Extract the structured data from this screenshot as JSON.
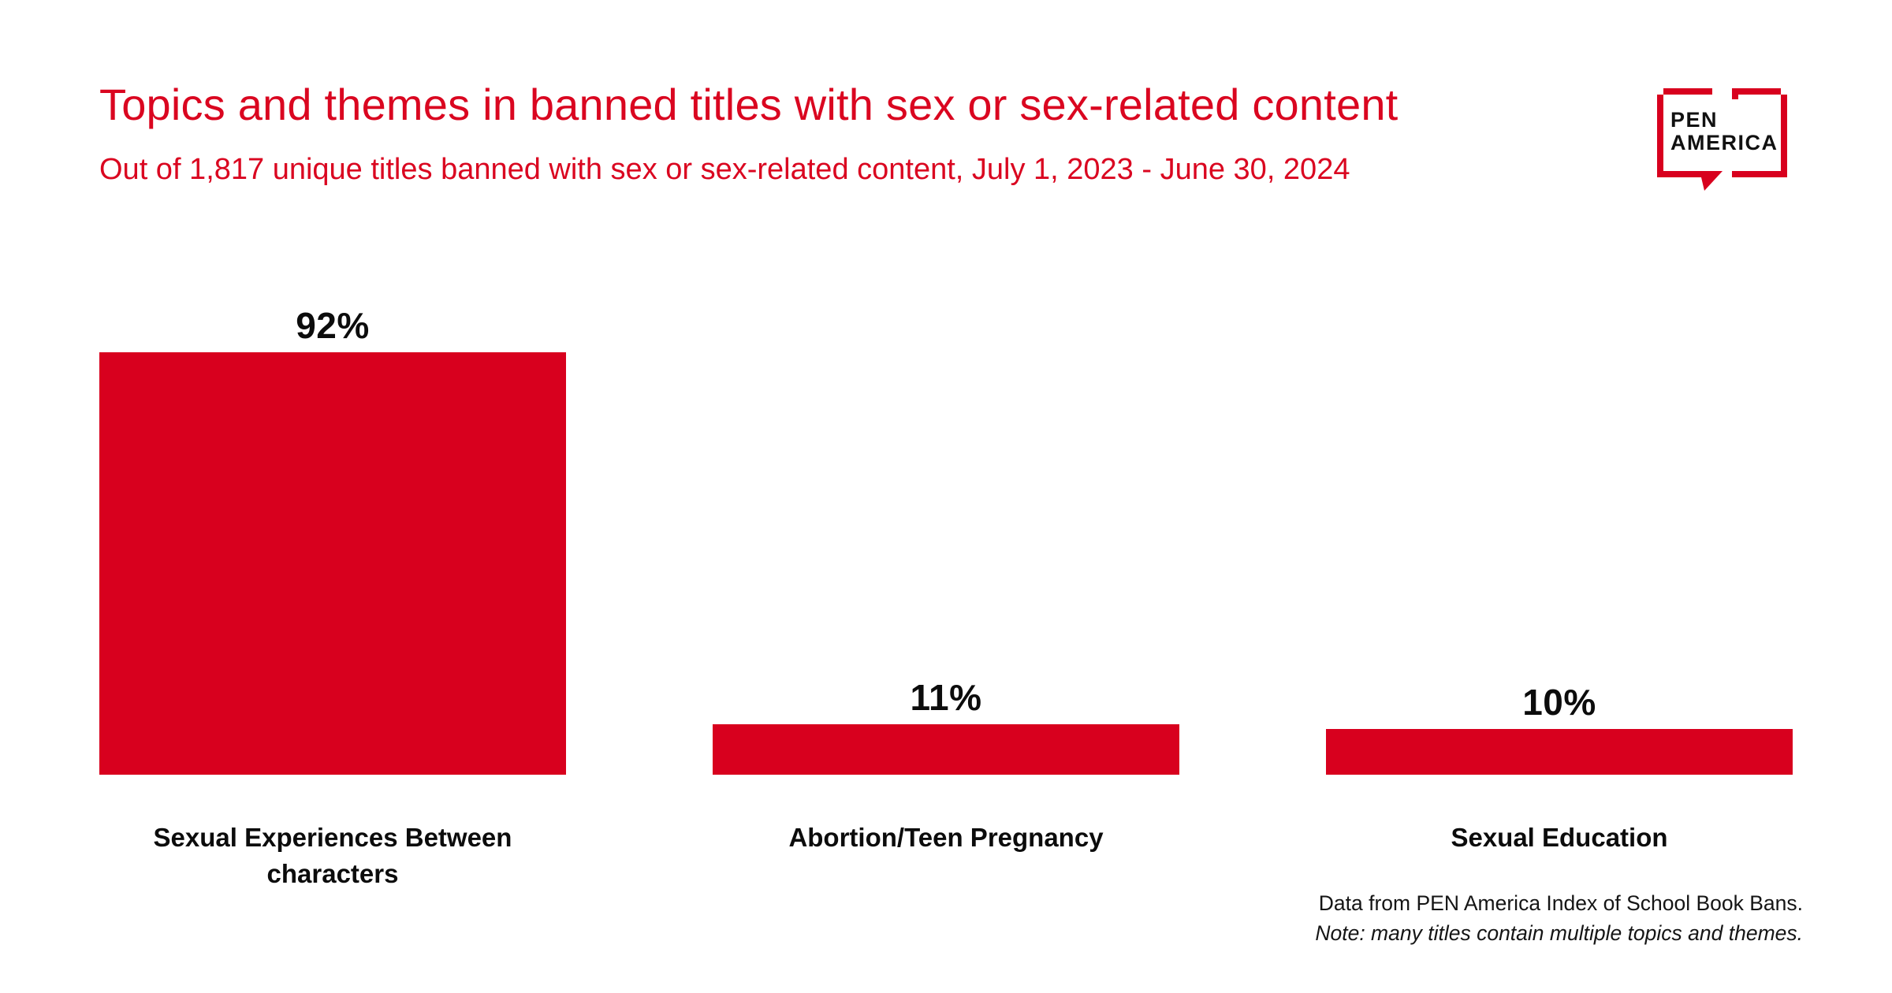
{
  "header": {
    "title": "Topics and themes in banned titles with sex or sex-related content",
    "subtitle": "Out of 1,817 unique titles banned with sex or sex-related content, July 1, 2023 - June 30, 2024"
  },
  "logo": {
    "line1": "PEN",
    "line2": "AMERICA"
  },
  "chart_data": {
    "type": "bar",
    "title": "Topics and themes in banned titles with sex or sex-related content",
    "subtitle": "Out of 1,817 unique titles banned with sex or sex-related content, July 1, 2023 - June 30, 2024",
    "categories": [
      "Sexual Experiences Between characters",
      "Abortion/Teen Pregnancy",
      "Sexual Education"
    ],
    "values": [
      92,
      11,
      10
    ],
    "value_labels": [
      "92%",
      "11%",
      "10%"
    ],
    "xlabel": "",
    "ylabel": "",
    "ylim": [
      0,
      100
    ],
    "grid": false,
    "legend": false,
    "bar_color": "#d8001e"
  },
  "footer": {
    "source": "Data from PEN America Index of School Book Bans.",
    "note": "Note: many titles contain multiple topics and themes."
  },
  "colors": {
    "accent_red": "#d8001e",
    "title_red": "#da0620",
    "text_black": "#0c0c0c",
    "background": "#ffffff"
  }
}
